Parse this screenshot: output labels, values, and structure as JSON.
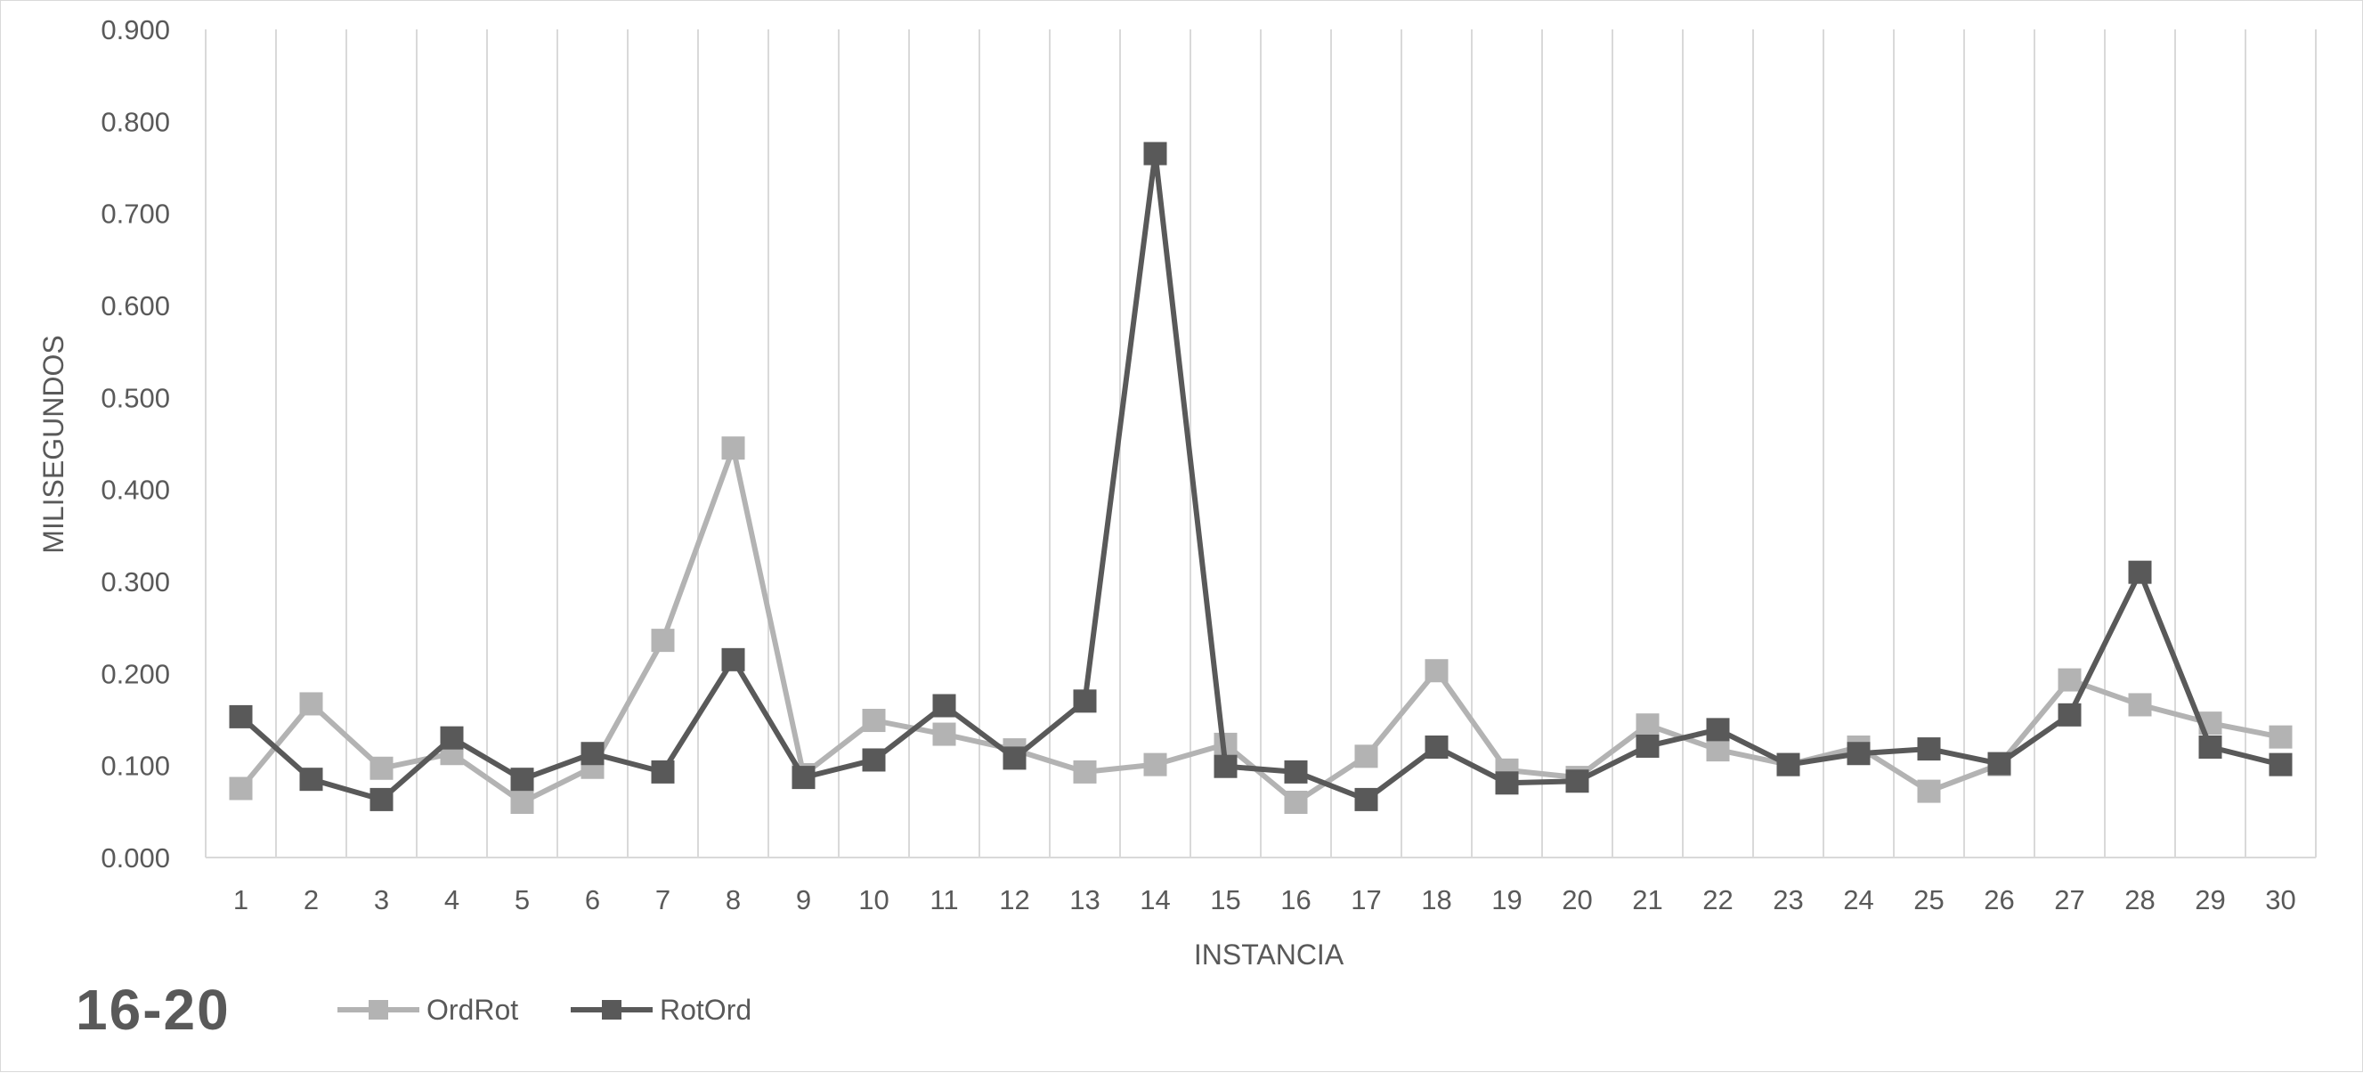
{
  "chart_data": {
    "type": "line",
    "panel_label": "16-20",
    "xlabel": "INSTANCIA",
    "ylabel": "MILISEGUNDOS",
    "categories": [
      "1",
      "2",
      "3",
      "4",
      "5",
      "6",
      "7",
      "8",
      "9",
      "10",
      "11",
      "12",
      "13",
      "14",
      "15",
      "16",
      "17",
      "18",
      "19",
      "20",
      "21",
      "22",
      "23",
      "24",
      "25",
      "26",
      "27",
      "28",
      "29",
      "30"
    ],
    "ylim": [
      0,
      0.9
    ],
    "yticks": [
      "0.000",
      "0.100",
      "0.200",
      "0.300",
      "0.400",
      "0.500",
      "0.600",
      "0.700",
      "0.800",
      "0.900"
    ],
    "grid": "vertical",
    "legend_position": "bottom-left",
    "series": [
      {
        "name": "OrdRot",
        "color": "#b3b3b3",
        "marker": "square",
        "values": [
          0.075,
          0.167,
          0.097,
          0.113,
          0.06,
          0.098,
          0.236,
          0.445,
          0.09,
          0.149,
          0.134,
          0.117,
          0.093,
          0.101,
          0.123,
          0.06,
          0.11,
          0.203,
          0.095,
          0.087,
          0.144,
          0.117,
          0.101,
          0.12,
          0.072,
          0.101,
          0.193,
          0.166,
          0.146,
          0.131
        ]
      },
      {
        "name": "RotOrd",
        "color": "#595959",
        "marker": "square",
        "values": [
          0.153,
          0.085,
          0.063,
          0.13,
          0.085,
          0.113,
          0.093,
          0.215,
          0.087,
          0.106,
          0.165,
          0.108,
          0.17,
          0.765,
          0.099,
          0.093,
          0.063,
          0.12,
          0.081,
          0.083,
          0.121,
          0.139,
          0.101,
          0.113,
          0.118,
          0.102,
          0.155,
          0.31,
          0.12,
          0.101
        ]
      }
    ]
  }
}
